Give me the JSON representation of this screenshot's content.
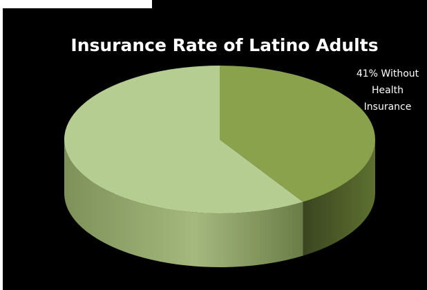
{
  "chart_data": {
    "type": "pie",
    "style": "3d",
    "title": "Insurance Rate of Latino Adults",
    "slices": [
      {
        "label": "41% Without Health Insurance",
        "value": 41,
        "color": "#8aa24c"
      },
      {
        "label": "",
        "value": 59,
        "color": "#b5cd91"
      }
    ],
    "legend": "none",
    "data_label_lines": [
      "41% Without",
      "Health",
      "Insurance"
    ],
    "background": "#000000"
  }
}
